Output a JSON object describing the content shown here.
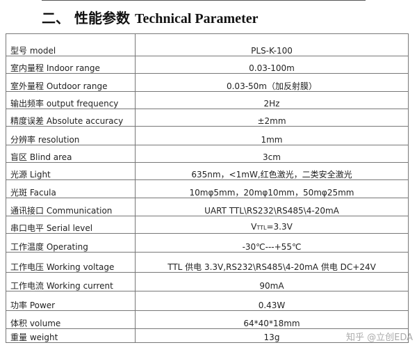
{
  "title": {
    "cn": "二、 性能参数",
    "en": "Technical Parameter"
  },
  "rows": [
    {
      "k": "型号 model",
      "v": "PLS-K-100"
    },
    {
      "k": "室内量程 Indoor range",
      "v": "0.03-100m"
    },
    {
      "k": "室外量程 Outdoor range",
      "v": "0.03-50m（加反射膜）"
    },
    {
      "k": "输出频率 output frequency",
      "v": "2Hz"
    },
    {
      "k": "精度误差 Absolute accuracy",
      "v": "±2mm"
    },
    {
      "k": "分辨率 resolution",
      "v": "1mm"
    },
    {
      "k": "盲区 Blind area",
      "v": "3cm"
    },
    {
      "k": "光源 Light",
      "v": "635nm，<1mW,红色激光，二类安全激光"
    },
    {
      "k": "光斑 Facula",
      "v": "10mφ5mm，20mφ10mm，50mφ25mm"
    },
    {
      "k": "通讯接口 Communication",
      "v": "UART TTL\\RS232\\RS485\\4-20mA"
    },
    {
      "k": "串口电平 Serial level",
      "v": "V",
      "sub": "TTL",
      "v2": "=3.3V"
    },
    {
      "k": "工作温度 Operating",
      "v": "-30℃---+55℃"
    },
    {
      "k": "工作电压 Working voltage",
      "v": "TTL 供电 3.3V,RS232\\RS485\\4-20mA 供电 DC+24V"
    },
    {
      "k": "工作电流 Working current",
      "v": "90mA"
    },
    {
      "k": "功率 Power",
      "v": "0.43W"
    },
    {
      "k": "体积 volume",
      "v": "64*40*18mm"
    },
    {
      "k": "重量 weight",
      "v": "13g"
    }
  ],
  "watermark": "知乎 @立创EDA"
}
